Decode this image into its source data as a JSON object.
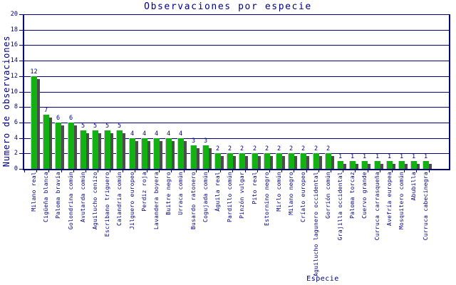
{
  "chart_data": {
    "type": "bar",
    "title": "Observaciones por especie",
    "xlabel": "Especie",
    "ylabel": "Numero de observaciones",
    "ylim": [
      0,
      20
    ],
    "ytick_step": 2,
    "grid": "horizontal",
    "legend": "none",
    "value_labels_shown": true,
    "bar_color": "#12b212",
    "bar_shadow_color": "#4d4d4d",
    "axis_color": "#000080",
    "text_color": "#000080",
    "background_color": "#ffffff",
    "categories": [
      "Milano real",
      "Cigüeña blanca",
      "Paloma bravía",
      "Golondrina común",
      "Avutarda común",
      "Aguilucho cenizo",
      "Escribano triguero",
      "Calandria común",
      "Jilguero europeo",
      "Perdiz roja",
      "Lavandera boyera",
      "Buitre negro",
      "Urraca común",
      "Busardo ratonero",
      "Cogujada común",
      "Águila real",
      "Pardillo común",
      "Pinzón vulgar",
      "Pito real",
      "Estornino negro",
      "Mirlo común",
      "Milano negro",
      "Críalo europeo",
      "Aguilucho lagunero occidental",
      "Gorrión común",
      "Grajilla occidental",
      "Paloma torcaz",
      "Cuervo grande",
      "Curruca carrasqueña",
      "Avefría europea",
      "Mosquitero común",
      "Abubilla",
      "Curruca cabecinegra"
    ],
    "values": [
      12,
      7,
      6,
      6,
      5,
      5,
      5,
      5,
      4,
      4,
      4,
      4,
      4,
      3,
      3,
      2,
      2,
      2,
      2,
      2,
      2,
      2,
      2,
      2,
      2,
      1,
      1,
      1,
      1,
      1,
      1,
      1,
      1
    ]
  }
}
